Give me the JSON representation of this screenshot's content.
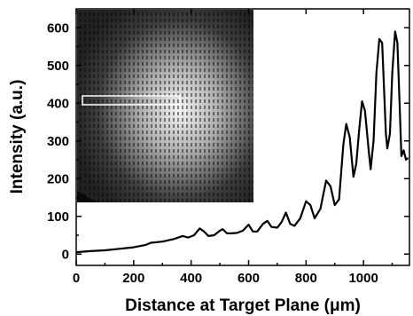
{
  "chart_data": {
    "type": "line",
    "title": "",
    "xlabel": "Distance at Target Plane (μm)",
    "ylabel": "Intensity (a.u.)",
    "xlim": [
      0,
      1160
    ],
    "ylim": [
      -30,
      650
    ],
    "xticks": [
      0,
      200,
      400,
      600,
      800,
      1000
    ],
    "yticks": [
      0,
      100,
      200,
      300,
      400,
      500,
      600
    ],
    "inset": "grayscale camera image of a speckle/fringe beam profile with a rectangular selection box",
    "series": [
      {
        "name": "",
        "color": "#000000",
        "points": [
          [
            0,
            5
          ],
          [
            50,
            8
          ],
          [
            100,
            10
          ],
          [
            150,
            14
          ],
          [
            200,
            18
          ],
          [
            240,
            24
          ],
          [
            260,
            30
          ],
          [
            300,
            33
          ],
          [
            340,
            40
          ],
          [
            370,
            48
          ],
          [
            390,
            44
          ],
          [
            410,
            50
          ],
          [
            430,
            68
          ],
          [
            445,
            60
          ],
          [
            460,
            48
          ],
          [
            480,
            50
          ],
          [
            500,
            62
          ],
          [
            510,
            66
          ],
          [
            525,
            55
          ],
          [
            540,
            55
          ],
          [
            560,
            56
          ],
          [
            580,
            62
          ],
          [
            600,
            78
          ],
          [
            615,
            60
          ],
          [
            630,
            60
          ],
          [
            650,
            80
          ],
          [
            665,
            88
          ],
          [
            680,
            72
          ],
          [
            700,
            70
          ],
          [
            715,
            85
          ],
          [
            730,
            110
          ],
          [
            745,
            80
          ],
          [
            760,
            75
          ],
          [
            780,
            95
          ],
          [
            800,
            140
          ],
          [
            815,
            130
          ],
          [
            830,
            95
          ],
          [
            850,
            120
          ],
          [
            870,
            195
          ],
          [
            885,
            180
          ],
          [
            900,
            130
          ],
          [
            915,
            145
          ],
          [
            930,
            290
          ],
          [
            940,
            345
          ],
          [
            952,
            310
          ],
          [
            965,
            205
          ],
          [
            975,
            240
          ],
          [
            985,
            330
          ],
          [
            995,
            405
          ],
          [
            1005,
            380
          ],
          [
            1018,
            275
          ],
          [
            1025,
            225
          ],
          [
            1035,
            300
          ],
          [
            1045,
            480
          ],
          [
            1055,
            570
          ],
          [
            1065,
            560
          ],
          [
            1078,
            320
          ],
          [
            1083,
            280
          ],
          [
            1092,
            320
          ],
          [
            1100,
            480
          ],
          [
            1110,
            590
          ],
          [
            1118,
            560
          ],
          [
            1126,
            390
          ],
          [
            1132,
            260
          ],
          [
            1140,
            275
          ],
          [
            1148,
            250
          ],
          [
            1155,
            255
          ]
        ]
      }
    ]
  }
}
